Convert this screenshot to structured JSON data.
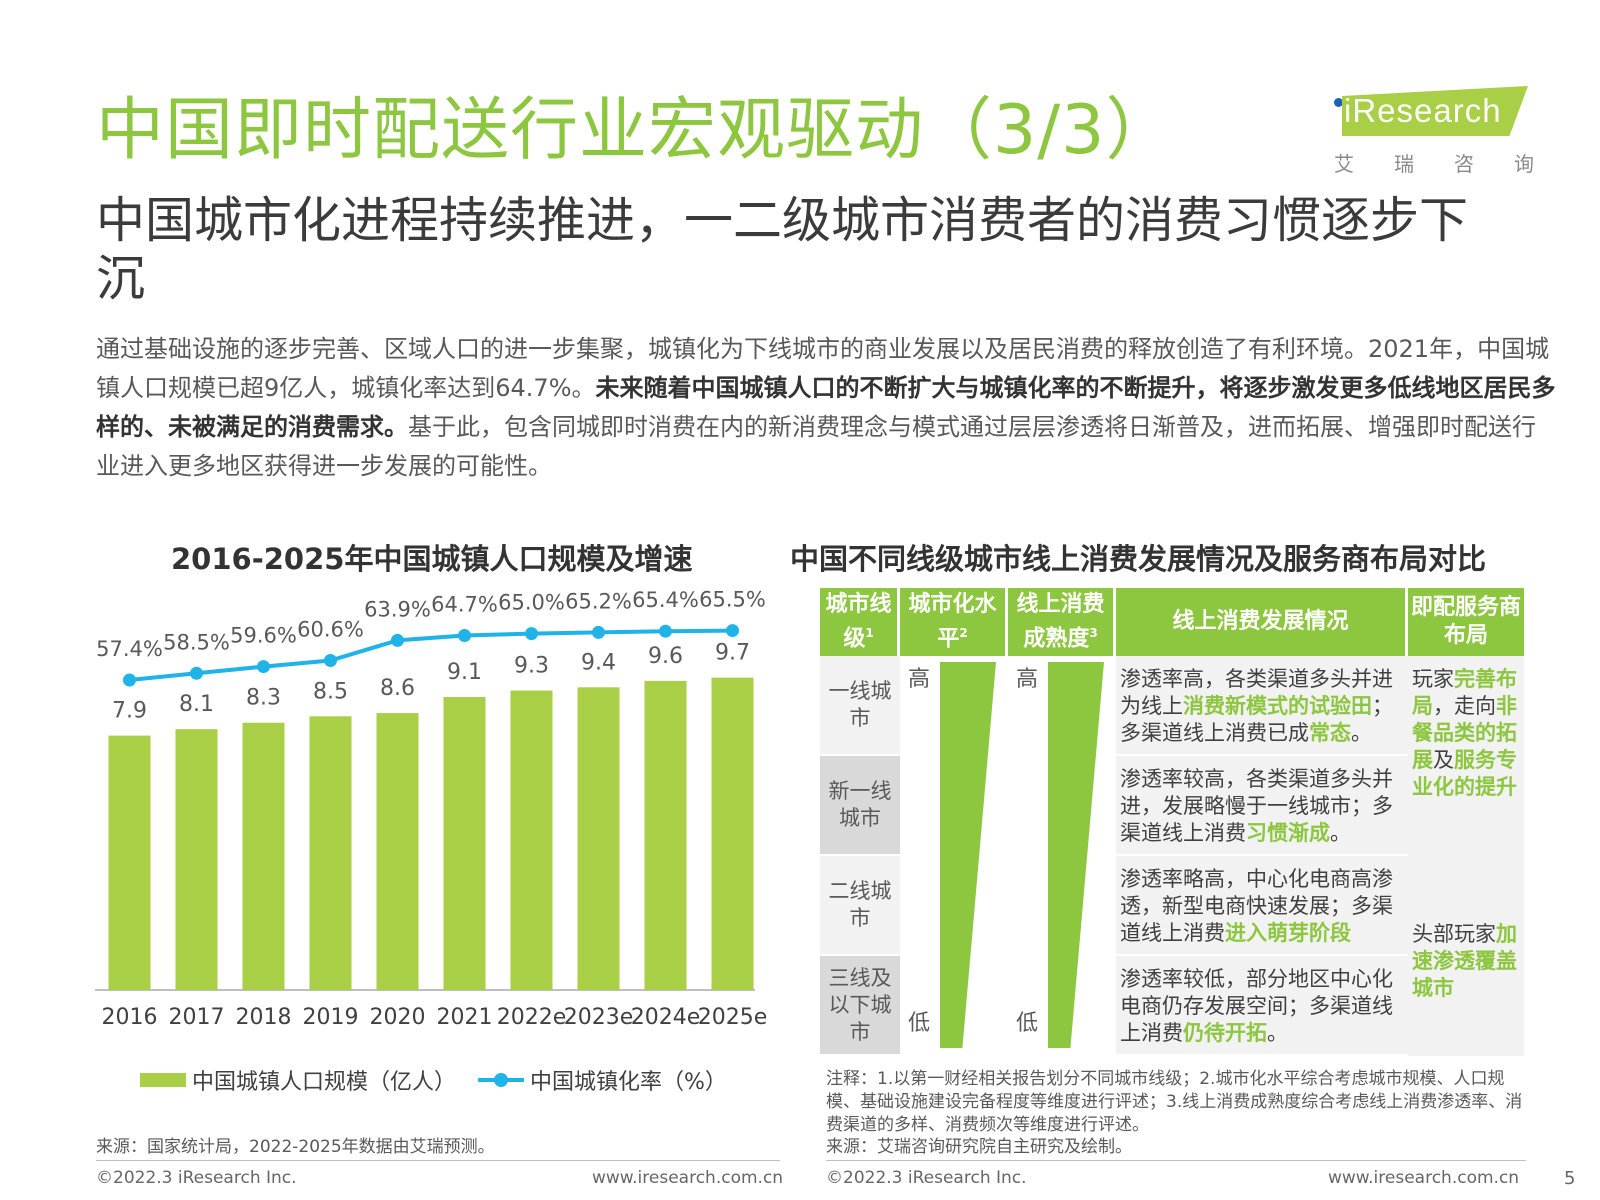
{
  "header": {
    "title": "中国即时配送行业宏观驱动（3/3）",
    "subtitle": "中国城市化进程持续推进，一二级城市消费者的消费习惯逐步下沉"
  },
  "logo": {
    "brand": "iResearch",
    "chars": [
      "艾",
      "瑞",
      "咨",
      "询"
    ],
    "color": "#a8cf45"
  },
  "intro": {
    "p1": "通过基础设施的逐步完善、区域人口的进一步集聚，城镇化为下线城市的商业发展以及居民消费的释放创造了有利环境。2021年，中国城镇人口规模已超9亿人，城镇化率达到64.7%。",
    "bold": "未来随着中国城镇人口的不断扩大与城镇化率的不断提升，将逐步激发更多低线地区居民多样的、未被满足的消费需求。",
    "p2": "基于此，包含同城即时消费在内的新消费理念与模式通过层层渗透将日渐普及，进而拓展、增强即时配送行业进入更多地区获得进一步发展的可能性。"
  },
  "left_chart": {
    "title": "2016-2025年中国城镇人口规模及增速",
    "source": "来源：国家统计局，2022-2025年数据由艾瑞预测。"
  },
  "chart_data": {
    "type": "bar",
    "title": "2016-2025年中国城镇人口规模及增速",
    "categories": [
      "2016",
      "2017",
      "2018",
      "2019",
      "2020",
      "2021",
      "2022e",
      "2023e",
      "2024e",
      "2025e"
    ],
    "series": [
      {
        "name": "中国城镇人口规模（亿人）",
        "type": "bar",
        "color": "#a8cf45",
        "values": [
          7.9,
          8.1,
          8.3,
          8.5,
          8.6,
          9.1,
          9.3,
          9.4,
          9.6,
          9.7
        ],
        "labels": [
          "7.9",
          "8.1",
          "8.3",
          "8.5",
          "8.6",
          "9.1",
          "9.3",
          "9.4",
          "9.6",
          "9.7"
        ]
      },
      {
        "name": "中国城镇化率（%）",
        "type": "line",
        "color": "#1fb3e8",
        "values": [
          57.4,
          58.5,
          59.6,
          60.6,
          63.9,
          64.7,
          65.0,
          65.2,
          65.4,
          65.5
        ],
        "labels": [
          "57.4%",
          "58.5%",
          "59.6%",
          "60.6%",
          "63.9%",
          "64.7%",
          "65.0%",
          "65.2%",
          "65.4%",
          "65.5%"
        ]
      }
    ],
    "legend_position": "bottom"
  },
  "right_table": {
    "title": "中国不同线级城市线上消费发展情况及服务商布局对比",
    "headers": {
      "level": "城市线级",
      "level_sup": "1",
      "urban": "城市化水平",
      "urban_sup": "2",
      "maturity": "线上消费成熟度",
      "maturity_sup": "3",
      "online": "线上消费发展情况",
      "layout": "即配服务商布局"
    },
    "high_label": "高",
    "low_label": "低",
    "rows": [
      {
        "level": "一线城市",
        "desc_a": "渗透率高，各类渠道多头并进为线上",
        "desc_b": "消费新模式的试验田",
        "desc_c": "；多渠道线上消费已成",
        "desc_d": "常态",
        "desc_e": "。"
      },
      {
        "level": "新一线城市",
        "desc_a": "渗透率较高，各类渠道多头并进，发展略慢于一线城市；多渠道线上消费",
        "desc_b": "习惯渐成",
        "desc_c": "。",
        "desc_d": "",
        "desc_e": ""
      },
      {
        "level": "二线城市",
        "desc_a": "渗透率略高，中心化电商高渗透，新型电商快速发展；多渠道线上消费",
        "desc_b": "进入萌芽阶段",
        "desc_c": "",
        "desc_d": "",
        "desc_e": ""
      },
      {
        "level": "三线及以下城市",
        "desc_a": "渗透率较低，部分地区中心化电商仍存发展空间；多渠道线上消费",
        "desc_b": "仍待开拓",
        "desc_c": "。",
        "desc_d": "",
        "desc_e": ""
      }
    ],
    "layout_top": {
      "a": "玩家",
      "b": "完善布局",
      "c": "，走向",
      "d": "非餐品类的拓展",
      "e": "及",
      "f": "服务专业化的提升"
    },
    "layout_bottom": {
      "a": "头部玩家",
      "b": "加速渗透覆盖城市"
    },
    "notes": "注释：1.以第一财经相关报告划分不同城市线级；2.城市化水平综合考虑城市规模、人口规模、基础设施建设完备程度等维度进行评述；3.线上消费成熟度综合考虑线上消费渗透率、消费渠道的多样、消费频次等维度进行评述。",
    "source": "来源：艾瑞咨询研究院自主研究及绘制。"
  },
  "footer": {
    "copyright": "©2022.3 iResearch Inc.",
    "url": "www.iresearch.com.cn",
    "page": "5"
  }
}
